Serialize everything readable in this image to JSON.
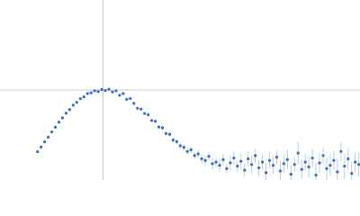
{
  "chart_data": {
    "type": "scatter",
    "x": [
      0.63,
      0.69,
      0.75,
      0.81,
      0.87,
      0.93,
      0.99,
      1.05,
      1.11,
      1.17,
      1.23,
      1.29,
      1.35,
      1.41,
      1.47,
      1.53,
      1.59,
      1.65,
      1.71,
      1.77,
      1.83,
      1.89,
      1.95,
      2.01,
      2.07,
      2.13,
      2.19,
      2.25,
      2.31,
      2.37,
      2.43,
      2.49,
      2.55,
      2.61,
      2.67,
      2.73,
      2.79,
      2.85,
      2.91,
      2.97,
      3.03,
      3.09,
      3.15,
      3.21,
      3.27,
      3.33,
      3.39,
      3.45,
      3.51,
      3.57,
      3.63,
      3.69,
      3.75,
      3.81,
      3.87,
      3.93,
      3.99,
      4.05,
      4.11,
      4.17,
      4.23,
      4.29,
      4.35,
      4.41,
      4.47,
      4.53,
      4.59,
      4.65,
      4.71,
      4.77,
      4.83,
      4.89,
      4.95,
      5.01,
      5.07,
      5.13,
      5.19,
      5.25,
      5.31,
      5.37,
      5.43,
      5.49,
      5.55,
      5.61,
      5.67,
      5.73,
      5.79,
      5.85,
      5.91,
      5.97,
      6.03
    ],
    "series": [
      {
        "color": "#3a6cc8",
        "error_color": "#a9bfe6",
        "values": [
          0.348,
          0.404,
          0.468,
          0.525,
          0.59,
          0.647,
          0.71,
          0.762,
          0.82,
          0.864,
          0.918,
          0.952,
          0.998,
          1.02,
          1.06,
          1.07,
          1.095,
          1.085,
          1.11,
          1.098,
          1.112,
          1.08,
          1.095,
          1.04,
          1.06,
          0.99,
          1.0,
          0.94,
          0.88,
          0.87,
          0.815,
          0.8,
          0.73,
          0.72,
          0.65,
          0.64,
          0.57,
          0.56,
          0.49,
          0.47,
          0.42,
          0.4,
          0.35,
          0.37,
          0.3,
          0.32,
          0.26,
          0.24,
          0.29,
          0.2,
          0.22,
          0.18,
          0.25,
          0.14,
          0.21,
          0.27,
          0.17,
          0.23,
          0.12,
          0.26,
          0.19,
          0.3,
          0.15,
          0.22,
          0.09,
          0.24,
          0.18,
          0.28,
          0.11,
          0.2,
          0.25,
          0.07,
          0.19,
          0.33,
          0.13,
          0.22,
          0.16,
          0.27,
          0.06,
          0.21,
          0.3,
          0.14,
          0.18,
          0.24,
          0.1,
          0.35,
          0.17,
          0.26,
          0.08,
          0.22,
          0.19
        ],
        "errors": [
          0.004,
          0.004,
          0.004,
          0.004,
          0.004,
          0.004,
          0.004,
          0.004,
          0.004,
          0.004,
          0.004,
          0.004,
          0.004,
          0.004,
          0.004,
          0.004,
          0.004,
          0.004,
          0.004,
          0.004,
          0.006,
          0.006,
          0.007,
          0.008,
          0.008,
          0.009,
          0.01,
          0.011,
          0.012,
          0.013,
          0.014,
          0.015,
          0.017,
          0.018,
          0.02,
          0.022,
          0.024,
          0.026,
          0.028,
          0.03,
          0.032,
          0.035,
          0.038,
          0.04,
          0.043,
          0.046,
          0.05,
          0.06,
          0.05,
          0.07,
          0.06,
          0.08,
          0.07,
          0.06,
          0.09,
          0.08,
          0.07,
          0.1,
          0.08,
          0.09,
          0.11,
          0.08,
          0.1,
          0.09,
          0.12,
          0.1,
          0.11,
          0.09,
          0.13,
          0.1,
          0.12,
          0.11,
          0.09,
          0.14,
          0.12,
          0.1,
          0.13,
          0.11,
          0.15,
          0.12,
          0.1,
          0.14,
          0.13,
          0.11,
          0.16,
          0.12,
          0.15,
          0.13,
          0.14,
          0.12,
          0.15
        ]
      }
    ],
    "xlim": [
      0,
      6.05
    ],
    "ylim": [
      0,
      2.208
    ],
    "vlines": [
      1.732
    ],
    "hlines": [
      1.104
    ],
    "guide_color": "#cccccc"
  }
}
